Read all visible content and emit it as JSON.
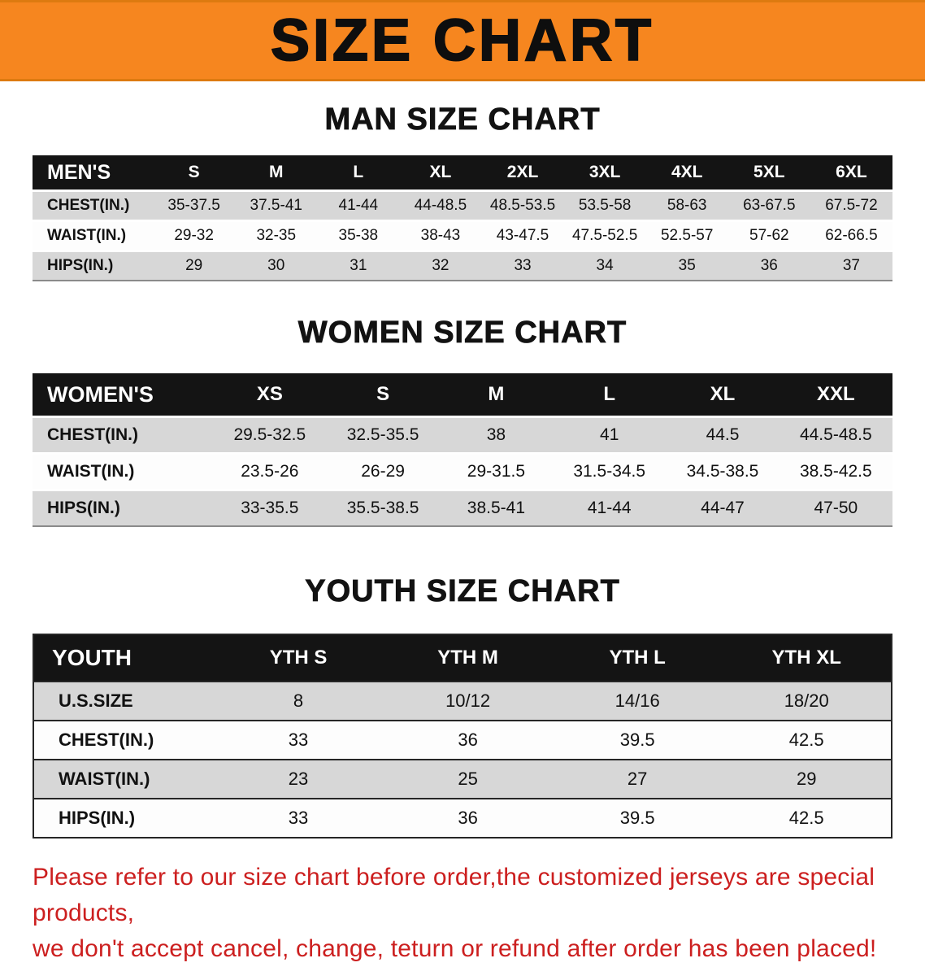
{
  "banner": {
    "title": "SIZE CHART",
    "bg_color": "#f6861f"
  },
  "sections": [
    {
      "heading": "MAN SIZE CHART",
      "table": {
        "header": [
          "MEN'S",
          "S",
          "M",
          "L",
          "XL",
          "2XL",
          "3XL",
          "4XL",
          "5XL",
          "6XL"
        ],
        "rows": [
          [
            "CHEST(IN.)",
            "35-37.5",
            "37.5-41",
            "41-44",
            "44-48.5",
            "48.5-53.5",
            "53.5-58",
            "58-63",
            "63-67.5",
            "67.5-72"
          ],
          [
            "WAIST(IN.)",
            "29-32",
            "32-35",
            "35-38",
            "38-43",
            "43-47.5",
            "47.5-52.5",
            "52.5-57",
            "57-62",
            "62-66.5"
          ],
          [
            "HIPS(IN.)",
            "29",
            "30",
            "31",
            "32",
            "33",
            "34",
            "35",
            "36",
            "37"
          ]
        ]
      }
    },
    {
      "heading": "WOMEN SIZE CHART",
      "table": {
        "header": [
          "WOMEN'S",
          "XS",
          "S",
          "M",
          "L",
          "XL",
          "XXL"
        ],
        "rows": [
          [
            "CHEST(IN.)",
            "29.5-32.5",
            "32.5-35.5",
            "38",
            "41",
            "44.5",
            "44.5-48.5"
          ],
          [
            "WAIST(IN.)",
            "23.5-26",
            "26-29",
            "29-31.5",
            "31.5-34.5",
            "34.5-38.5",
            "38.5-42.5"
          ],
          [
            "HIPS(IN.)",
            "33-35.5",
            "35.5-38.5",
            "38.5-41",
            "41-44",
            "44-47",
            "47-50"
          ]
        ]
      }
    },
    {
      "heading": "YOUTH SIZE CHART",
      "table": {
        "header": [
          "YOUTH",
          "YTH S",
          "YTH M",
          "YTH L",
          "YTH XL"
        ],
        "rows": [
          [
            "U.S.SIZE",
            "8",
            "10/12",
            "14/16",
            "18/20"
          ],
          [
            "CHEST(IN.)",
            "33",
            "36",
            "39.5",
            "42.5"
          ],
          [
            "WAIST(IN.)",
            "23",
            "25",
            "27",
            "29"
          ],
          [
            "HIPS(IN.)",
            "33",
            "36",
            "39.5",
            "42.5"
          ]
        ]
      }
    }
  ],
  "disclaimer": {
    "color": "#cc1f1f",
    "line1": "Please refer to our size chart before order,the customized jerseys are special products,",
    "line2": "we don't accept cancel, change, teturn or refund after order has been placed!"
  }
}
